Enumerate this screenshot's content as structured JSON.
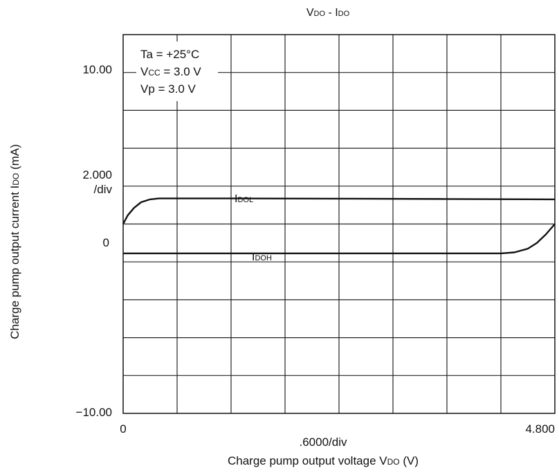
{
  "chart_data": {
    "type": "line",
    "title": {
      "main": "V",
      "sub1": "DO",
      "sep": " - I",
      "sub2": "DO"
    },
    "xlabel": {
      "pre": "Charge pump output voltage V",
      "sub": "DO",
      "post": " (V)"
    },
    "ylabel": {
      "pre": "Charge pump output current I",
      "sub": "DO",
      "post": " (mA)"
    },
    "xlim": [
      0,
      4.8
    ],
    "ylim": [
      -10,
      10
    ],
    "x_divisions": 8,
    "y_divisions": 10,
    "grid": true,
    "x_tick_labels": {
      "min": "0",
      "max": "4.800",
      "div": ".6000/div"
    },
    "y_tick_labels": {
      "max": "10.00",
      "mid": "0",
      "min": "−10.00",
      "div": "2.000",
      "div_suffix": "/div"
    },
    "conditions": {
      "ta": "Ta = +25°C",
      "vcc_pre": "V",
      "vcc_sub": "CC",
      "vcc_post": " = 3.0 V",
      "vp": "Vp = 3.0 V"
    },
    "series": [
      {
        "name": "I",
        "name_sub": "DOL",
        "x": [
          0,
          0.05,
          0.12,
          0.2,
          0.3,
          0.4,
          0.5,
          0.6,
          1.2,
          2.4,
          3.6,
          4.8
        ],
        "y": [
          0,
          0.45,
          0.85,
          1.15,
          1.3,
          1.35,
          1.35,
          1.35,
          1.35,
          1.34,
          1.32,
          1.3
        ]
      },
      {
        "name": "I",
        "name_sub": "DOH",
        "x": [
          0,
          0.6,
          1.2,
          2.4,
          3.6,
          4.2,
          4.35,
          4.5,
          4.6,
          4.7,
          4.8
        ],
        "y": [
          -1.55,
          -1.55,
          -1.55,
          -1.55,
          -1.55,
          -1.55,
          -1.5,
          -1.3,
          -1.0,
          -0.55,
          0
        ]
      }
    ]
  }
}
